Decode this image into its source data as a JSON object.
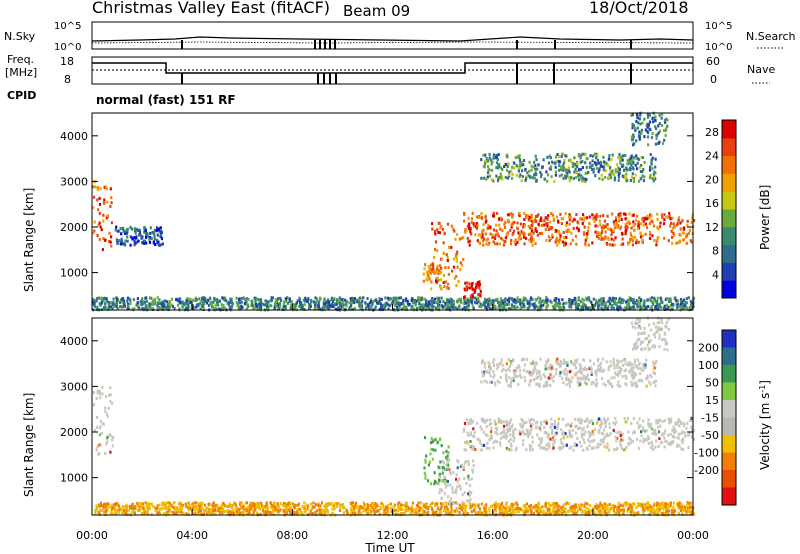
{
  "header": {
    "station": "Christmas Valley East (fitACF)",
    "beam": "Beam 09",
    "date": "18/Oct/2018"
  },
  "left_labels": {
    "nsky": "N.Sky",
    "freq_line1": "Freq.",
    "freq_line2": "[MHz]",
    "cpid": "CPID"
  },
  "right_labels": {
    "nsearch": "N.Search",
    "nave": "Nave"
  },
  "noise_axis": {
    "left_top": "10^5",
    "left_bottom": "10^0",
    "right_top": "10^5",
    "right_bottom": "10^0"
  },
  "freq_axis": {
    "left_top": "18",
    "left_bottom": "8",
    "right_top": "60",
    "right_bottom": "0"
  },
  "cpid_text": "normal (fast) 151 RF",
  "time_axis": {
    "ticks": [
      "00:00",
      "04:00",
      "08:00",
      "12:00",
      "16:00",
      "20:00",
      "00:00"
    ],
    "label": "Time UT"
  },
  "colors": {
    "power": [
      "#0000e0",
      "#1f3fb0",
      "#2e6e8a",
      "#3a8a6e",
      "#6aaa3a",
      "#c8c814",
      "#f0a000",
      "#f07000",
      "#e84010",
      "#dd0000"
    ],
    "velocity": [
      "#2030c0",
      "#2e6e8a",
      "#3a9a50",
      "#80c840",
      "#c8c8c0",
      "#b8b8b0",
      "#f0c000",
      "#f08000",
      "#e85000",
      "#e01010"
    ],
    "ground_scatter": "#c8c8c0"
  },
  "chart_data": [
    {
      "type": "heatmap",
      "title": "",
      "xlabel": "",
      "ylabel": "Slant Range [km]",
      "x_ticks": [
        "00:00",
        "04:00",
        "08:00",
        "12:00",
        "16:00",
        "20:00",
        "00:00"
      ],
      "y_ticks": [
        "1000",
        "2000",
        "3000",
        "4000"
      ],
      "ylim": [
        180,
        4500
      ],
      "colorbar": {
        "label": "Power [dB]",
        "ticks": [
          "4",
          "8",
          "12",
          "16",
          "20",
          "24",
          "28"
        ],
        "range": [
          0,
          30
        ]
      },
      "echo_regions": [
        {
          "t_start": 0.0,
          "t_end": 0.8,
          "r_min": 1500,
          "r_max": 3000,
          "level": 0.8
        },
        {
          "t_start": 0.9,
          "t_end": 2.8,
          "r_min": 1600,
          "r_max": 2000,
          "level": 0.2
        },
        {
          "t_start": 0.0,
          "t_end": 24.0,
          "r_min": 180,
          "r_max": 450,
          "level": 0.3
        },
        {
          "t_start": 13.2,
          "t_end": 13.9,
          "r_min": 800,
          "r_max": 1200,
          "level": 0.7
        },
        {
          "t_start": 13.5,
          "t_end": 14.8,
          "r_min": 600,
          "r_max": 2100,
          "level": 0.75
        },
        {
          "t_start": 14.8,
          "t_end": 15.5,
          "r_min": 400,
          "r_max": 800,
          "level": 0.95
        },
        {
          "t_start": 14.8,
          "t_end": 24.0,
          "r_min": 1600,
          "r_max": 2300,
          "level": 0.8
        },
        {
          "t_start": 15.5,
          "t_end": 22.5,
          "r_min": 3000,
          "r_max": 3600,
          "level": 0.35
        },
        {
          "t_start": 21.5,
          "t_end": 23.0,
          "r_min": 3800,
          "r_max": 4500,
          "level": 0.3
        }
      ]
    },
    {
      "type": "heatmap",
      "title": "",
      "xlabel": "Time UT",
      "ylabel": "Slant Range [km]",
      "x_ticks": [
        "00:00",
        "04:00",
        "08:00",
        "12:00",
        "16:00",
        "20:00",
        "00:00"
      ],
      "y_ticks": [
        "1000",
        "2000",
        "3000",
        "4000"
      ],
      "ylim": [
        180,
        4500
      ],
      "colorbar": {
        "label": "Velocity [m s^-1]",
        "ticks": [
          "200",
          "100",
          "50",
          "15",
          "-15",
          "-50",
          "-100",
          "-200"
        ],
        "range": [
          -250,
          250
        ]
      },
      "echo_regions": [
        {
          "t_start": 0.0,
          "t_end": 0.8,
          "r_min": 1500,
          "r_max": 3000,
          "kind": "ground"
        },
        {
          "t_start": 0.0,
          "t_end": 24.0,
          "r_min": 180,
          "r_max": 450,
          "kind": "negative"
        },
        {
          "t_start": 13.2,
          "t_end": 14.2,
          "r_min": 800,
          "r_max": 1900,
          "kind": "positive"
        },
        {
          "t_start": 13.8,
          "t_end": 15.2,
          "r_min": 400,
          "r_max": 1400,
          "kind": "ground"
        },
        {
          "t_start": 14.8,
          "t_end": 24.0,
          "r_min": 1600,
          "r_max": 2300,
          "kind": "ground"
        },
        {
          "t_start": 15.5,
          "t_end": 22.5,
          "r_min": 3000,
          "r_max": 3600,
          "kind": "ground"
        },
        {
          "t_start": 21.5,
          "t_end": 23.0,
          "r_min": 3800,
          "r_max": 4500,
          "kind": "ground"
        }
      ]
    }
  ]
}
